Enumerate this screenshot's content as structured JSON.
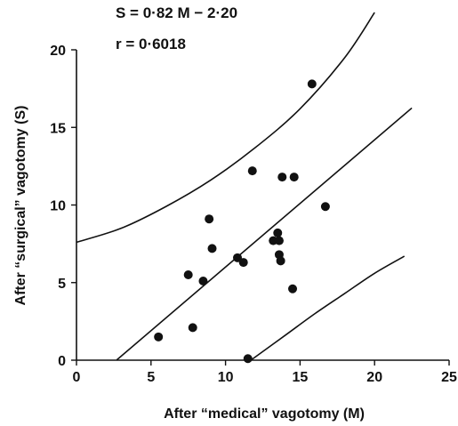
{
  "chart_data": {
    "type": "scatter",
    "title": "",
    "annotations": {
      "equation": "S = 0·82 M − 2·20",
      "correlation": "r = 0·6018"
    },
    "xlabel": "After “medical” vagotomy (M)",
    "ylabel": "After “surgical” vagotomy (S)",
    "xlim": [
      0,
      25
    ],
    "ylim": [
      0,
      20
    ],
    "xticks": [
      0,
      5,
      10,
      15,
      20,
      25
    ],
    "yticks": [
      0,
      5,
      10,
      15,
      20
    ],
    "grid": false,
    "points": [
      {
        "x": 5.5,
        "y": 1.5
      },
      {
        "x": 7.5,
        "y": 5.5
      },
      {
        "x": 7.8,
        "y": 2.1
      },
      {
        "x": 8.5,
        "y": 5.1
      },
      {
        "x": 8.9,
        "y": 9.1
      },
      {
        "x": 9.1,
        "y": 7.2
      },
      {
        "x": 10.8,
        "y": 6.6
      },
      {
        "x": 11.2,
        "y": 6.3
      },
      {
        "x": 11.5,
        "y": 0.1
      },
      {
        "x": 11.8,
        "y": 12.2
      },
      {
        "x": 13.2,
        "y": 7.7
      },
      {
        "x": 13.5,
        "y": 8.2
      },
      {
        "x": 13.6,
        "y": 7.7
      },
      {
        "x": 13.6,
        "y": 6.8
      },
      {
        "x": 13.7,
        "y": 6.4
      },
      {
        "x": 13.8,
        "y": 11.8
      },
      {
        "x": 14.5,
        "y": 4.6
      },
      {
        "x": 14.6,
        "y": 11.8
      },
      {
        "x": 15.8,
        "y": 17.8
      },
      {
        "x": 16.7,
        "y": 9.9
      }
    ],
    "regression": {
      "slope": 0.82,
      "intercept": -2.2,
      "x_range": [
        2.7,
        22.5
      ]
    },
    "confidence_band": {
      "upper": [
        [
          0,
          7.6
        ],
        [
          3,
          8.5
        ],
        [
          6,
          9.9
        ],
        [
          9,
          11.6
        ],
        [
          12,
          13.7
        ],
        [
          15,
          16.2
        ],
        [
          18,
          19.5
        ],
        [
          20,
          22.4
        ]
      ],
      "lower": [
        [
          11.7,
          0
        ],
        [
          14,
          1.6
        ],
        [
          16,
          3.0
        ],
        [
          18,
          4.3
        ],
        [
          20,
          5.6
        ],
        [
          22,
          6.7
        ]
      ]
    },
    "colors": {
      "points": "#111111",
      "lines": "#111111",
      "background": "#ffffff"
    }
  }
}
